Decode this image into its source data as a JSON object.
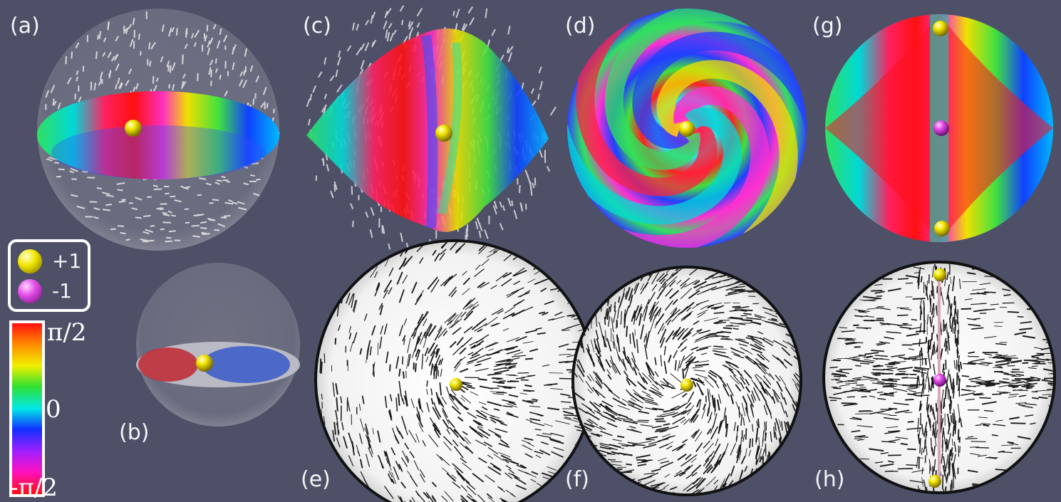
{
  "panel_labels": {
    "a": "(a)",
    "b": "(b)",
    "c": "(c)",
    "d": "(d)",
    "e": "(e)",
    "f": "(f)",
    "g": "(g)",
    "h": "(h)"
  },
  "legend": {
    "plus": {
      "label": "+1",
      "color": "#f2e600"
    },
    "minus": {
      "label": "-1",
      "color": "#e34ce8"
    }
  },
  "colorbar": {
    "top_label": "π/2",
    "mid_label": "0",
    "bottom_label": "-π/2",
    "colors": [
      "#ff1010",
      "#ff8800",
      "#f0f000",
      "#30e030",
      "#00e8e8",
      "#1030ff",
      "#a020ff",
      "#ff10c0",
      "#ff1010"
    ]
  },
  "colors": {
    "background": "#4e5068",
    "defect_plus": "#f2e600",
    "defect_minus": "#e34ce8"
  }
}
